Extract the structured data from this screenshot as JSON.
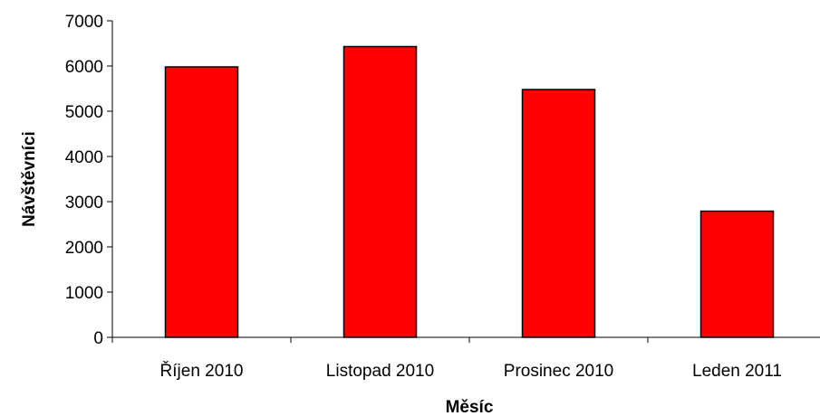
{
  "chart_data": {
    "type": "bar",
    "title": "",
    "xlabel": "Měsíc",
    "ylabel": "Návštěvníci",
    "categories": [
      "Říjen 2010",
      "Listopad 2010",
      "Prosinec 2010",
      "Leden 2011"
    ],
    "series": [
      {
        "values": [
          5980,
          6430,
          5480,
          2790
        ]
      }
    ],
    "ylim": [
      0,
      7000
    ],
    "yticks": [
      0,
      1000,
      2000,
      3000,
      4000,
      5000,
      6000,
      7000
    ],
    "grid": false,
    "legend": "none",
    "colors": {
      "bar_fill": "#ff0000",
      "bar_stroke": "#000000",
      "axis": "#000000"
    }
  }
}
